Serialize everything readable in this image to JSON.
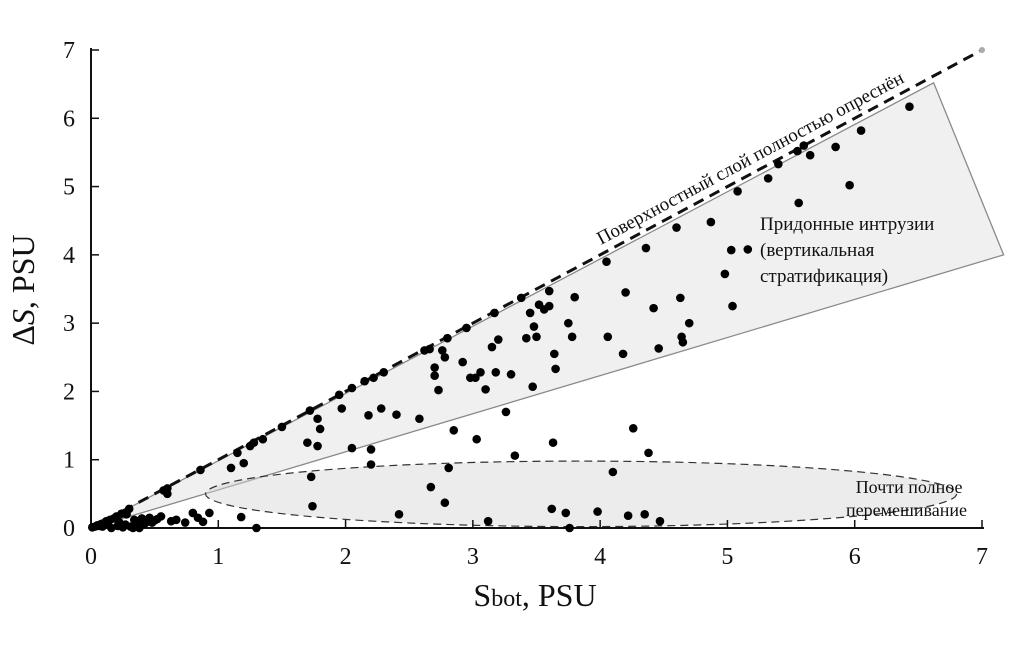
{
  "chart_data": {
    "type": "scatter",
    "title": "",
    "xlabel": "S",
    "xlabel_sub": "bot",
    "xlabel_unit": ", PSU",
    "ylabel_prefix": "Δ",
    "ylabel_var": "S",
    "ylabel_unit": ", PSU",
    "xlim": [
      0,
      7
    ],
    "ylim": [
      0,
      7
    ],
    "grid": false,
    "x_ticks": [
      0,
      1,
      2,
      3,
      4,
      5,
      6,
      7
    ],
    "y_ticks": [
      0,
      1,
      2,
      3,
      4,
      5,
      6,
      7
    ],
    "reference_line": {
      "from": [
        0,
        0
      ],
      "to": [
        7,
        7
      ],
      "style": "dashed"
    },
    "regions": [
      {
        "kind": "wedge",
        "polygon": [
          [
            0,
            0
          ],
          [
            6.62,
            6.52
          ],
          [
            7.17,
            4.0
          ]
        ]
      },
      {
        "kind": "ellipse",
        "center": [
          3.85,
          0.5
        ],
        "rx": 2.95,
        "ry": 0.48
      }
    ],
    "annotations": {
      "diagonal": "Поверхностный слой полностью опреснён",
      "intrusions": [
        "Придонные интрузии",
        "(вертикальная",
        "стратификация)"
      ],
      "mixing": [
        "Почти полное",
        "перемешивание"
      ]
    },
    "points": [
      [
        0.01,
        0.01
      ],
      [
        0.03,
        0.02
      ],
      [
        0.05,
        0.04
      ],
      [
        0.06,
        0.03
      ],
      [
        0.08,
        0.06
      ],
      [
        0.09,
        0.02
      ],
      [
        0.1,
        0.07
      ],
      [
        0.12,
        0.1
      ],
      [
        0.13,
        0.05
      ],
      [
        0.15,
        0.12
      ],
      [
        0.16,
        0.0
      ],
      [
        0.18,
        0.14
      ],
      [
        0.2,
        0.17
      ],
      [
        0.21,
        0.03
      ],
      [
        0.22,
        0.09
      ],
      [
        0.24,
        0.21
      ],
      [
        0.25,
        0.01
      ],
      [
        0.27,
        0.05
      ],
      [
        0.28,
        0.2
      ],
      [
        0.3,
        0.28
      ],
      [
        0.31,
        0.02
      ],
      [
        0.33,
        0.0
      ],
      [
        0.34,
        0.12
      ],
      [
        0.36,
        0.04
      ],
      [
        0.37,
        0.1
      ],
      [
        0.38,
        0.0
      ],
      [
        0.4,
        0.14
      ],
      [
        0.42,
        0.06
      ],
      [
        0.44,
        0.09
      ],
      [
        0.46,
        0.15
      ],
      [
        0.48,
        0.08
      ],
      [
        0.5,
        0.11
      ],
      [
        0.52,
        0.13
      ],
      [
        0.55,
        0.17
      ],
      [
        0.57,
        0.55
      ],
      [
        0.6,
        0.58
      ],
      [
        0.6,
        0.5
      ],
      [
        0.63,
        0.1
      ],
      [
        0.67,
        0.12
      ],
      [
        0.74,
        0.08
      ],
      [
        0.8,
        0.22
      ],
      [
        0.84,
        0.15
      ],
      [
        0.86,
        0.85
      ],
      [
        0.88,
        0.09
      ],
      [
        0.93,
        0.22
      ],
      [
        1.1,
        0.88
      ],
      [
        1.15,
        1.1
      ],
      [
        1.2,
        0.95
      ],
      [
        1.25,
        1.2
      ],
      [
        1.28,
        1.25
      ],
      [
        1.35,
        1.3
      ],
      [
        1.18,
        0.16
      ],
      [
        1.3,
        0.0
      ],
      [
        1.5,
        1.48
      ],
      [
        1.7,
        1.25
      ],
      [
        1.72,
        1.72
      ],
      [
        1.73,
        0.75
      ],
      [
        1.74,
        0.32
      ],
      [
        1.78,
        1.2
      ],
      [
        1.8,
        1.45
      ],
      [
        1.78,
        1.6
      ],
      [
        1.95,
        1.95
      ],
      [
        1.97,
        1.75
      ],
      [
        2.05,
        2.05
      ],
      [
        2.05,
        1.17
      ],
      [
        2.15,
        2.15
      ],
      [
        2.18,
        1.65
      ],
      [
        2.2,
        1.15
      ],
      [
        2.2,
        0.93
      ],
      [
        2.22,
        2.2
      ],
      [
        2.28,
        1.75
      ],
      [
        2.3,
        2.28
      ],
      [
        2.4,
        1.66
      ],
      [
        2.42,
        0.2
      ],
      [
        2.58,
        1.6
      ],
      [
        2.62,
        2.6
      ],
      [
        2.66,
        2.62
      ],
      [
        2.67,
        0.6
      ],
      [
        2.7,
        2.35
      ],
      [
        2.7,
        2.23
      ],
      [
        2.73,
        2.02
      ],
      [
        2.76,
        2.6
      ],
      [
        2.78,
        2.5
      ],
      [
        2.78,
        0.37
      ],
      [
        2.8,
        2.78
      ],
      [
        2.81,
        0.88
      ],
      [
        2.85,
        1.43
      ],
      [
        2.92,
        2.43
      ],
      [
        2.95,
        2.93
      ],
      [
        2.98,
        2.2
      ],
      [
        3.02,
        2.2
      ],
      [
        3.03,
        1.3
      ],
      [
        3.06,
        2.28
      ],
      [
        3.1,
        2.03
      ],
      [
        3.12,
        0.1
      ],
      [
        3.15,
        2.65
      ],
      [
        3.17,
        3.15
      ],
      [
        3.18,
        2.28
      ],
      [
        3.2,
        2.76
      ],
      [
        3.26,
        1.7
      ],
      [
        3.3,
        2.25
      ],
      [
        3.33,
        1.06
      ],
      [
        3.38,
        3.37
      ],
      [
        3.42,
        2.78
      ],
      [
        3.45,
        3.15
      ],
      [
        3.47,
        2.07
      ],
      [
        3.48,
        2.95
      ],
      [
        3.5,
        2.8
      ],
      [
        3.52,
        3.27
      ],
      [
        3.56,
        3.2
      ],
      [
        3.6,
        3.25
      ],
      [
        3.6,
        3.47
      ],
      [
        3.62,
        0.28
      ],
      [
        3.63,
        1.25
      ],
      [
        3.64,
        2.55
      ],
      [
        3.65,
        2.33
      ],
      [
        3.73,
        0.22
      ],
      [
        3.75,
        3.0
      ],
      [
        3.76,
        0.0
      ],
      [
        3.78,
        2.8
      ],
      [
        3.8,
        3.38
      ],
      [
        3.98,
        0.24
      ],
      [
        4.05,
        3.9
      ],
      [
        4.06,
        2.8
      ],
      [
        4.1,
        0.82
      ],
      [
        4.18,
        2.55
      ],
      [
        4.2,
        3.45
      ],
      [
        4.22,
        0.18
      ],
      [
        4.26,
        1.46
      ],
      [
        4.35,
        0.2
      ],
      [
        4.36,
        4.1
      ],
      [
        4.38,
        1.1
      ],
      [
        4.42,
        3.22
      ],
      [
        4.46,
        2.63
      ],
      [
        4.47,
        0.1
      ],
      [
        4.6,
        4.4
      ],
      [
        4.63,
        3.37
      ],
      [
        4.64,
        2.8
      ],
      [
        4.65,
        2.72
      ],
      [
        4.7,
        3.0
      ],
      [
        4.87,
        4.48
      ],
      [
        4.98,
        3.72
      ],
      [
        5.03,
        4.07
      ],
      [
        5.04,
        3.25
      ],
      [
        5.08,
        4.93
      ],
      [
        5.16,
        4.08
      ],
      [
        5.32,
        5.12
      ],
      [
        5.4,
        5.33
      ],
      [
        5.55,
        5.52
      ],
      [
        5.56,
        4.76
      ],
      [
        5.6,
        5.6
      ],
      [
        5.65,
        5.46
      ],
      [
        5.85,
        5.58
      ],
      [
        5.96,
        5.02
      ],
      [
        6.05,
        5.82
      ],
      [
        6.43,
        6.17
      ]
    ]
  }
}
